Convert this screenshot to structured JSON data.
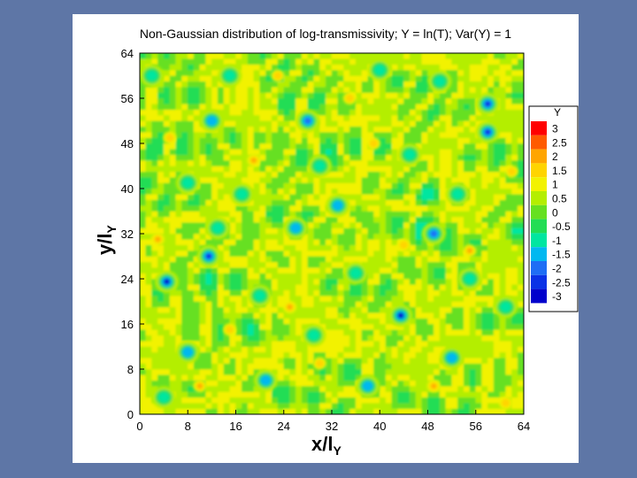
{
  "slide": {
    "background_color": "#5e76a6"
  },
  "chart_data": {
    "type": "heatmap",
    "title": "Non-Gaussian distribution of log-transmissivity; Y = ln(T); Var(Y) = 1",
    "xlabel": "x/l",
    "xlabel_sub": "Y",
    "ylabel": "y/l",
    "ylabel_sub": "Y",
    "xlim": [
      0,
      64
    ],
    "ylim": [
      0,
      64
    ],
    "xticks": [
      "0",
      "8",
      "16",
      "24",
      "32",
      "40",
      "48",
      "56",
      "64"
    ],
    "yticks": [
      "0",
      "8",
      "16",
      "24",
      "32",
      "40",
      "48",
      "56",
      "64"
    ],
    "legend": {
      "title": "Y",
      "position": "right",
      "levels": [
        "3",
        "2.5",
        "2",
        "1.5",
        "1",
        "0.5",
        "0",
        "-0.5",
        "-1",
        "-1.5",
        "-2",
        "-2.5",
        "-3"
      ],
      "colors": [
        "#ff0000",
        "#ff5a00",
        "#ffa500",
        "#ffd400",
        "#f2f200",
        "#b4ee00",
        "#66e020",
        "#22dd55",
        "#00e6a0",
        "#00b8f0",
        "#1e6ef5",
        "#0a32e6",
        "#0000cc"
      ]
    },
    "field_note": "smooth random field, mostly 0 to 0.5 (green) with thin yellow/red ridges and sparse blue lows",
    "lows": [
      [
        4.5,
        23.5,
        -3
      ],
      [
        11.5,
        28,
        -2.5
      ],
      [
        43.5,
        17.5,
        -3
      ],
      [
        58,
        50,
        -2.5
      ],
      [
        58,
        55,
        -2.5
      ],
      [
        28,
        52,
        -2
      ],
      [
        49,
        32,
        -2
      ],
      [
        33,
        37,
        -1.5
      ],
      [
        8,
        11,
        -1.5
      ],
      [
        12,
        52,
        -1.5
      ],
      [
        52,
        10,
        -1.5
      ],
      [
        21,
        6,
        -1.5
      ],
      [
        38,
        5,
        -1.5
      ],
      [
        26,
        33,
        -1.5
      ],
      [
        17,
        39,
        -1.2
      ],
      [
        53,
        39,
        -1.2
      ],
      [
        20,
        21,
        -1
      ],
      [
        36,
        25,
        -1
      ],
      [
        45,
        46,
        -1
      ],
      [
        8,
        41,
        -1
      ],
      [
        55,
        24,
        -1
      ],
      [
        29,
        14,
        -1
      ],
      [
        2,
        60,
        -1
      ],
      [
        40,
        61,
        -1
      ],
      [
        50,
        59,
        -1
      ],
      [
        15,
        60,
        -1
      ],
      [
        61,
        19,
        -1
      ],
      [
        13,
        33,
        -1
      ],
      [
        30,
        44,
        -1
      ],
      [
        4,
        3,
        -1
      ]
    ],
    "highs": [
      [
        10,
        5,
        1.8
      ],
      [
        25,
        19,
        2
      ],
      [
        3,
        31,
        1.8
      ],
      [
        19,
        45,
        1.8
      ],
      [
        49,
        5,
        1.8
      ],
      [
        55,
        29,
        1.8
      ],
      [
        39,
        48,
        1.5
      ],
      [
        23,
        60,
        1.5
      ],
      [
        62,
        43,
        1.5
      ],
      [
        30,
        9,
        1.5
      ],
      [
        44,
        30,
        1.5
      ],
      [
        5,
        49,
        1.5
      ],
      [
        35,
        56,
        1.5
      ],
      [
        61,
        2,
        1.5
      ],
      [
        15,
        15,
        1.5
      ]
    ]
  }
}
